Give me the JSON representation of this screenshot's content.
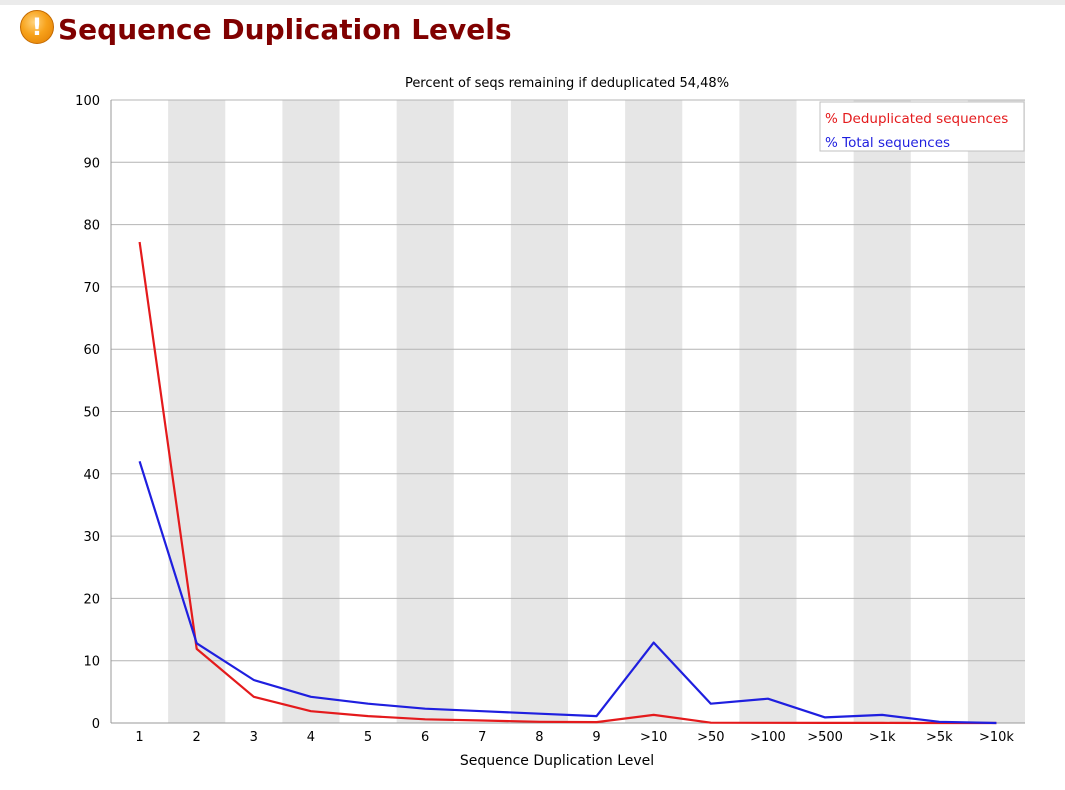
{
  "page": {
    "title": "Sequence Duplication Levels",
    "status_icon": "warning-icon",
    "status_icon_glyph": "!"
  },
  "chart_data": {
    "type": "line",
    "title": "Percent of seqs remaining if deduplicated 54,48%",
    "xlabel": "Sequence Duplication Level",
    "ylabel": "",
    "categories": [
      "1",
      "2",
      "3",
      "4",
      "5",
      "6",
      "7",
      "8",
      "9",
      ">10",
      ">50",
      ">100",
      ">500",
      ">1k",
      ">5k",
      ">10k"
    ],
    "ylim": [
      0,
      100
    ],
    "yticks": [
      0,
      10,
      20,
      30,
      40,
      50,
      60,
      70,
      80,
      90,
      100
    ],
    "grid": true,
    "legend": "top-right",
    "series": [
      {
        "name": "% Deduplicated sequences",
        "color": "#e41a1c",
        "values": [
          77.2,
          11.9,
          4.2,
          1.9,
          1.1,
          0.6,
          0.4,
          0.2,
          0.15,
          1.3,
          0.05,
          0.03,
          0.01,
          0.01,
          0.0,
          0.0
        ]
      },
      {
        "name": "% Total sequences",
        "color": "#1f1fdf",
        "values": [
          42.0,
          12.8,
          6.9,
          4.2,
          3.1,
          2.3,
          1.9,
          1.5,
          1.1,
          12.9,
          3.1,
          3.9,
          0.9,
          1.3,
          0.2,
          0.0
        ]
      }
    ],
    "band_color": "#e6e6e6",
    "grid_color": "#b4b4b4",
    "axis_color": "#999999"
  }
}
